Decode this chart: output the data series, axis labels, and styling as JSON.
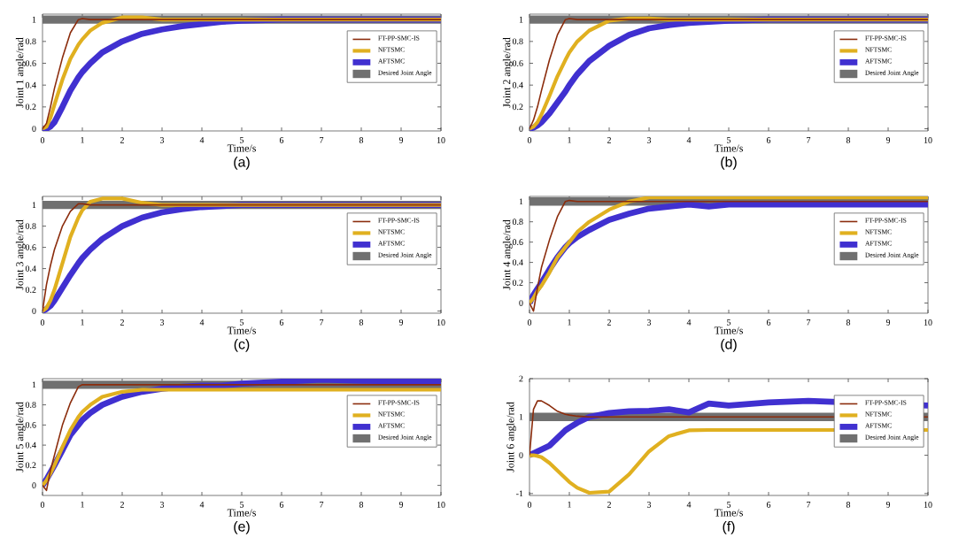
{
  "chart_data": [
    {
      "type": "line",
      "title": "(a)",
      "xlabel": "Time/s",
      "ylabel": "Joint 1 angle/rad",
      "legend": "top right",
      "grid": false,
      "xlim": [
        0,
        10
      ],
      "ylim": [
        -0.02,
        1.05
      ],
      "xticks": [
        0,
        1,
        2,
        3,
        4,
        5,
        6,
        7,
        8,
        9,
        10
      ],
      "yticks": [
        0,
        0.2,
        0.4,
        0.6,
        0.8,
        1
      ],
      "x": [
        0,
        0.1,
        0.2,
        0.3,
        0.5,
        0.7,
        0.9,
        1,
        1.2,
        1.5,
        2,
        2.5,
        3,
        3.5,
        4,
        4.5,
        5,
        6,
        7,
        8,
        10
      ],
      "series": [
        {
          "name": "FT-PP-SMC-IS",
          "color": "#8b2c0c",
          "values": [
            0,
            0.05,
            0.2,
            0.37,
            0.65,
            0.88,
            1.0,
            1.01,
            1.0,
            1,
            1,
            1,
            1,
            1,
            1,
            1,
            1,
            1,
            1,
            1,
            1
          ]
        },
        {
          "name": "NFTSMC",
          "color": "#e0b020",
          "values": [
            0,
            0.02,
            0.1,
            0.22,
            0.45,
            0.64,
            0.77,
            0.82,
            0.9,
            0.97,
            1.02,
            1.02,
            1.0,
            1,
            1,
            1,
            1,
            1,
            1,
            1,
            1
          ]
        },
        {
          "name": "AFTSMC",
          "color": "#4030d0",
          "values": [
            0,
            0,
            0.02,
            0.06,
            0.2,
            0.35,
            0.47,
            0.52,
            0.6,
            0.7,
            0.8,
            0.87,
            0.91,
            0.94,
            0.96,
            0.98,
            0.99,
            1,
            1,
            1,
            1
          ]
        },
        {
          "name": "Desired Joint Angle",
          "color": "#707070",
          "values": [
            1,
            1,
            1,
            1,
            1,
            1,
            1,
            1,
            1,
            1,
            1,
            1,
            1,
            1,
            1,
            1,
            1,
            1,
            1,
            1,
            1
          ]
        }
      ]
    },
    {
      "type": "line",
      "title": "(b)",
      "xlabel": "Time/s",
      "ylabel": "Joint 2 angle/rad",
      "legend": "top right",
      "grid": false,
      "xlim": [
        0,
        10
      ],
      "ylim": [
        -0.02,
        1.05
      ],
      "xticks": [
        0,
        1,
        2,
        3,
        4,
        5,
        6,
        7,
        8,
        9,
        10
      ],
      "yticks": [
        0,
        0.2,
        0.4,
        0.6,
        0.8,
        1
      ],
      "x": [
        0,
        0.1,
        0.2,
        0.3,
        0.5,
        0.7,
        0.9,
        1,
        1.2,
        1.5,
        2,
        2.5,
        3,
        3.5,
        4,
        4.5,
        5,
        6,
        7,
        8,
        10
      ],
      "series": [
        {
          "name": "FT-PP-SMC-IS",
          "color": "#8b2c0c",
          "values": [
            0,
            0.08,
            0.2,
            0.35,
            0.63,
            0.86,
            1.0,
            1.01,
            1.0,
            1,
            1,
            1,
            1,
            1,
            1,
            1,
            1,
            1,
            1,
            1,
            1
          ]
        },
        {
          "name": "NFTSMC",
          "color": "#e0b020",
          "values": [
            0,
            0.02,
            0.06,
            0.13,
            0.3,
            0.48,
            0.63,
            0.7,
            0.8,
            0.9,
            0.99,
            1.01,
            1.01,
            1.0,
            1,
            1,
            1,
            1,
            1,
            1,
            1
          ]
        },
        {
          "name": "AFTSMC",
          "color": "#4030d0",
          "values": [
            0,
            0.01,
            0.03,
            0.06,
            0.14,
            0.24,
            0.34,
            0.4,
            0.5,
            0.62,
            0.76,
            0.86,
            0.92,
            0.95,
            0.97,
            0.98,
            0.99,
            1,
            1,
            1,
            1
          ]
        },
        {
          "name": "Desired Joint Angle",
          "color": "#707070",
          "values": [
            1,
            1,
            1,
            1,
            1,
            1,
            1,
            1,
            1,
            1,
            1,
            1,
            1,
            1,
            1,
            1,
            1,
            1,
            1,
            1,
            1
          ]
        }
      ]
    },
    {
      "type": "line",
      "title": "(c)",
      "xlabel": "Time/s",
      "ylabel": "Joint 3 angle/rad",
      "legend": "top right",
      "grid": false,
      "xlim": [
        0,
        10
      ],
      "ylim": [
        -0.02,
        1.08
      ],
      "xticks": [
        0,
        1,
        2,
        3,
        4,
        5,
        6,
        7,
        8,
        9,
        10
      ],
      "yticks": [
        0,
        0.2,
        0.4,
        0.6,
        0.8,
        1
      ],
      "x": [
        0,
        0.1,
        0.2,
        0.3,
        0.5,
        0.7,
        0.9,
        1,
        1.2,
        1.5,
        2,
        2.5,
        3,
        3.5,
        4,
        4.5,
        5,
        6,
        7,
        8,
        10
      ],
      "series": [
        {
          "name": "FT-PP-SMC-IS",
          "color": "#8b2c0c",
          "values": [
            0,
            0.25,
            0.43,
            0.58,
            0.8,
            0.94,
            1.01,
            1.01,
            1.0,
            1,
            1,
            1,
            1,
            1,
            1,
            1,
            1,
            1,
            1,
            1,
            1
          ]
        },
        {
          "name": "NFTSMC",
          "color": "#e0b020",
          "values": [
            0,
            0.03,
            0.1,
            0.2,
            0.45,
            0.7,
            0.88,
            0.95,
            1.03,
            1.06,
            1.06,
            1.02,
            1.0,
            1,
            1,
            1,
            1,
            1,
            1,
            1,
            1
          ]
        },
        {
          "name": "AFTSMC",
          "color": "#4030d0",
          "values": [
            0,
            0.02,
            0.05,
            0.1,
            0.22,
            0.34,
            0.45,
            0.5,
            0.58,
            0.68,
            0.8,
            0.88,
            0.93,
            0.96,
            0.98,
            0.99,
            1,
            1,
            1,
            1,
            1
          ]
        },
        {
          "name": "Desired Joint Angle",
          "color": "#707070",
          "values": [
            1,
            1,
            1,
            1,
            1,
            1,
            1,
            1,
            1,
            1,
            1,
            1,
            1,
            1,
            1,
            1,
            1,
            1,
            1,
            1,
            1
          ]
        }
      ]
    },
    {
      "type": "line",
      "title": "(d)",
      "xlabel": "Time/s",
      "ylabel": "Joint 4 angle/rad",
      "legend": "top right",
      "grid": false,
      "xlim": [
        0,
        10
      ],
      "ylim": [
        -0.1,
        1.05
      ],
      "xticks": [
        0,
        1,
        2,
        3,
        4,
        5,
        6,
        7,
        8,
        9,
        10
      ],
      "yticks": [
        0,
        0.2,
        0.4,
        0.6,
        0.8,
        1
      ],
      "x": [
        0,
        0.1,
        0.2,
        0.3,
        0.5,
        0.7,
        0.9,
        1,
        1.2,
        1.5,
        2,
        2.5,
        3,
        3.5,
        4,
        4.5,
        5,
        6,
        7,
        8,
        10
      ],
      "series": [
        {
          "name": "FT-PP-SMC-IS",
          "color": "#8b2c0c",
          "values": [
            0,
            -0.08,
            0.15,
            0.35,
            0.62,
            0.85,
            1.0,
            1.01,
            1.0,
            1,
            1,
            1,
            1,
            1,
            1,
            1,
            1,
            1,
            1,
            1,
            1
          ]
        },
        {
          "name": "NFTSMC",
          "color": "#e0b020",
          "values": [
            0,
            0.05,
            0.12,
            0.17,
            0.3,
            0.45,
            0.55,
            0.6,
            0.7,
            0.8,
            0.92,
            1.0,
            1.04,
            1.04,
            1.04,
            1.04,
            1.04,
            1.04,
            1.04,
            1.04,
            1.04
          ]
        },
        {
          "name": "AFTSMC",
          "color": "#4030d0",
          "values": [
            0,
            0.08,
            0.14,
            0.2,
            0.33,
            0.45,
            0.55,
            0.59,
            0.65,
            0.72,
            0.82,
            0.88,
            0.93,
            0.95,
            0.97,
            0.95,
            0.97,
            0.97,
            0.97,
            0.97,
            0.97
          ]
        },
        {
          "name": "Desired Joint Angle",
          "color": "#707070",
          "values": [
            1,
            1,
            1,
            1,
            1,
            1,
            1,
            1,
            1,
            1,
            1,
            1,
            1,
            1,
            1,
            1,
            1,
            1,
            1,
            1,
            1
          ]
        }
      ]
    },
    {
      "type": "line",
      "title": "(e)",
      "xlabel": "Time/s",
      "ylabel": "Joint 5 angle/rad",
      "legend": "top right",
      "grid": false,
      "xlim": [
        0,
        10
      ],
      "ylim": [
        -0.1,
        1.06
      ],
      "xticks": [
        0,
        1,
        2,
        3,
        4,
        5,
        6,
        7,
        8,
        9,
        10
      ],
      "yticks": [
        0,
        0.2,
        0.4,
        0.6,
        0.8,
        1
      ],
      "x": [
        0,
        0.1,
        0.2,
        0.3,
        0.5,
        0.7,
        0.9,
        1,
        1.2,
        1.5,
        2,
        2.5,
        3,
        3.5,
        4,
        4.5,
        5,
        6,
        7,
        8,
        10
      ],
      "series": [
        {
          "name": "FT-PP-SMC-IS",
          "color": "#8b2c0c",
          "values": [
            0,
            -0.05,
            0.15,
            0.3,
            0.6,
            0.82,
            0.98,
            1.0,
            1,
            1,
            1,
            1,
            1,
            1,
            1,
            1,
            1,
            1,
            1,
            1,
            1
          ]
        },
        {
          "name": "NFTSMC",
          "color": "#e0b020",
          "values": [
            0,
            0.05,
            0.12,
            0.2,
            0.38,
            0.55,
            0.68,
            0.73,
            0.8,
            0.88,
            0.93,
            0.95,
            0.95,
            0.95,
            0.95,
            0.95,
            0.95,
            0.95,
            0.95,
            0.95,
            0.95
          ]
        },
        {
          "name": "AFTSMC",
          "color": "#4030d0",
          "values": [
            0,
            0.06,
            0.13,
            0.2,
            0.35,
            0.5,
            0.6,
            0.65,
            0.72,
            0.8,
            0.88,
            0.93,
            0.96,
            0.98,
            0.99,
            0.99,
            1.01,
            1.03,
            1.05,
            1.04,
            1.03
          ]
        },
        {
          "name": "Desired Joint Angle",
          "color": "#707070",
          "values": [
            1,
            1,
            1,
            1,
            1,
            1,
            1,
            1,
            1,
            1,
            1,
            1,
            1,
            1,
            1,
            1,
            1,
            1,
            1,
            1,
            1
          ]
        }
      ]
    },
    {
      "type": "line",
      "title": "(f)",
      "xlabel": "Time/s",
      "ylabel": "Joint 6 angle/rad",
      "legend": "top right",
      "grid": false,
      "xlim": [
        0,
        10
      ],
      "ylim": [
        -1.05,
        2
      ],
      "xticks": [
        0,
        1,
        2,
        3,
        4,
        5,
        6,
        7,
        8,
        9,
        10
      ],
      "yticks": [
        -1,
        0,
        1,
        2
      ],
      "x": [
        0,
        0.1,
        0.2,
        0.3,
        0.5,
        0.7,
        0.9,
        1,
        1.2,
        1.5,
        2,
        2.5,
        3,
        3.5,
        4,
        4.5,
        5,
        6,
        7,
        8,
        10
      ],
      "series": [
        {
          "name": "FT-PP-SMC-IS",
          "color": "#8b2c0c",
          "values": [
            0,
            1.2,
            1.42,
            1.42,
            1.3,
            1.15,
            1.07,
            1.05,
            1.02,
            1.0,
            1,
            1,
            1,
            1,
            1,
            1,
            1,
            1,
            1,
            null,
            1
          ]
        },
        {
          "name": "NFTSMC",
          "color": "#e0b020",
          "values": [
            0,
            0,
            -0.02,
            -0.05,
            -0.2,
            -0.4,
            -0.6,
            -0.7,
            -0.85,
            -0.98,
            -0.95,
            -0.5,
            0.1,
            0.5,
            0.65,
            0.66,
            0.66,
            0.66,
            0.66,
            null,
            0.66
          ]
        },
        {
          "name": "AFTSMC",
          "color": "#4030d0",
          "values": [
            0,
            0.05,
            0.1,
            0.15,
            0.25,
            0.45,
            0.65,
            0.72,
            0.85,
            1.0,
            1.1,
            1.15,
            1.16,
            1.2,
            1.12,
            1.35,
            1.3,
            1.38,
            1.42,
            null,
            1.3
          ]
        },
        {
          "name": "Desired Joint Angle",
          "color": "#707070",
          "values": [
            1,
            1,
            1,
            1,
            1,
            1,
            1,
            1,
            1,
            1,
            1,
            1,
            1,
            1,
            1,
            1,
            1,
            1,
            1,
            null,
            1
          ]
        }
      ]
    }
  ]
}
